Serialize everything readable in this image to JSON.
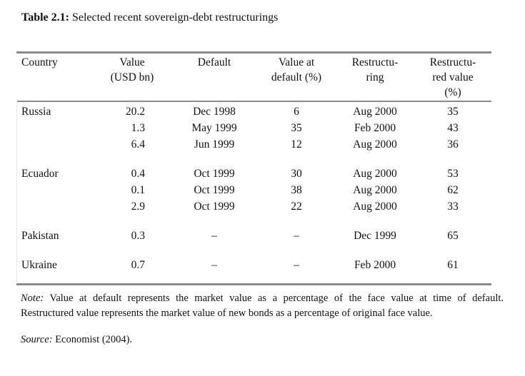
{
  "caption": {
    "label": "Table 2.1:",
    "text": " Selected recent sovereign-debt restructurings"
  },
  "table": {
    "columns": [
      {
        "header": "Country"
      },
      {
        "header": "Value\n(USD bn)"
      },
      {
        "header": "Default"
      },
      {
        "header": "Value at\ndefault (%)"
      },
      {
        "header": "Restructu-\nring"
      },
      {
        "header": "Restructu-\nred value\n(%)"
      }
    ],
    "rows": [
      {
        "cells": [
          "Russia",
          "20.2",
          "Dec 1998",
          "6",
          "Aug 2000",
          "35"
        ]
      },
      {
        "cells": [
          "",
          "1.3",
          "May 1999",
          "35",
          "Feb 2000",
          "43"
        ]
      },
      {
        "cells": [
          "",
          "6.4",
          "Jun 1999",
          "12",
          "Aug 2000",
          "36"
        ]
      },
      {
        "spacer": true
      },
      {
        "cells": [
          "Ecuador",
          "0.4",
          "Oct 1999",
          "30",
          "Aug 2000",
          "53"
        ]
      },
      {
        "cells": [
          "",
          "0.1",
          "Oct 1999",
          "38",
          "Aug 2000",
          "62"
        ]
      },
      {
        "cells": [
          "",
          "2.9",
          "Oct 1999",
          "22",
          "Aug 2000",
          "33"
        ]
      },
      {
        "spacer": true
      },
      {
        "cells": [
          "Pakistan",
          "0.3",
          "–",
          "–",
          "Dec 1999",
          "65"
        ]
      },
      {
        "spacer": true
      },
      {
        "cells": [
          "Ukraine",
          "0.7",
          "–",
          "–",
          "Feb 2000",
          "61"
        ]
      }
    ]
  },
  "note": {
    "label": "Note:",
    "line1": " Value at default represents the market value as a percentage of the face value at time of default.",
    "line2": "Restructured value represents the market value of new bonds as a percentage of original face value."
  },
  "source": {
    "label": "Source:",
    "text": " Economist (2004)."
  },
  "colors": {
    "rule": "#8a8a8a",
    "text": "#111111",
    "background": "#ffffff"
  }
}
